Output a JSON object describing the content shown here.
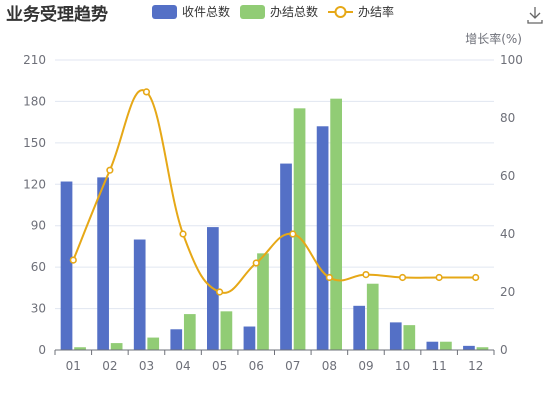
{
  "chart_data": {
    "type": "bar",
    "title": "业务受理趋势",
    "categories": [
      "01",
      "02",
      "03",
      "04",
      "05",
      "06",
      "07",
      "08",
      "09",
      "10",
      "11",
      "12"
    ],
    "series": [
      {
        "name": "收件总数",
        "type": "bar",
        "axis": "left",
        "color": "#5470c6",
        "values": [
          122,
          125,
          80,
          15,
          89,
          17,
          135,
          162,
          32,
          20,
          6,
          3
        ]
      },
      {
        "name": "办结总数",
        "type": "bar",
        "axis": "left",
        "color": "#91cc75",
        "values": [
          2,
          5,
          9,
          26,
          28,
          70,
          175,
          182,
          48,
          18,
          6,
          2
        ]
      },
      {
        "name": "办结率",
        "type": "line",
        "axis": "right",
        "color": "#e6a817",
        "smooth": true,
        "values": [
          31,
          62,
          89,
          40,
          20,
          30,
          40,
          25,
          26,
          25,
          25,
          25
        ]
      }
    ],
    "y_left": {
      "min": 0,
      "max": 210,
      "ticks": [
        0,
        30,
        60,
        90,
        120,
        150,
        180,
        210
      ]
    },
    "y_right": {
      "name": "增长率(%)",
      "min": 0,
      "max": 100,
      "ticks": [
        0,
        20,
        40,
        60,
        80,
        100
      ]
    },
    "grid": true,
    "legend_position": "top"
  },
  "toolbox": {
    "icon": "download-icon"
  }
}
